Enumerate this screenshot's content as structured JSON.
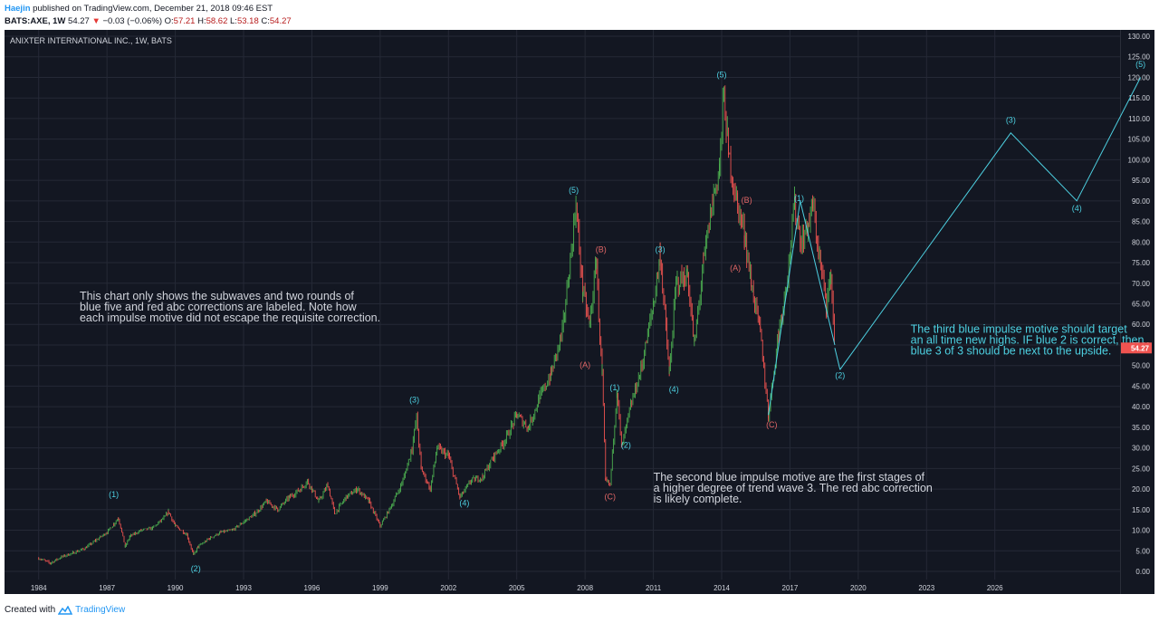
{
  "header": {
    "author": "Haejin",
    "published": "published on TradingView.com, December 21, 2018 09:46 EST",
    "symbol": "BATS:AXE, 1W",
    "last": "54.27",
    "arrow": "▼",
    "change": "−0.03 (−0.06%)",
    "o_label": "O:",
    "o": "57.21",
    "h_label": "H:",
    "h": "58.62",
    "l_label": "L:",
    "l": "53.18",
    "c_label": "C:",
    "c": "54.27"
  },
  "footer": {
    "created_with": "Created with",
    "brand": "TradingView"
  },
  "colors": {
    "background": "#131722",
    "grid": "#252936",
    "up": "#4caf50",
    "down": "#ef5350",
    "blue_wave": "#4dd0e1",
    "red_wave": "#e06666",
    "text": "#d1d4dc",
    "price_tag": "#ef5350"
  },
  "chart_data": {
    "type": "line",
    "title": "ANIXTER INTERNATIONAL INC., 1W, BATS",
    "y_range": [
      0,
      130
    ],
    "y_ticks": [
      "0.00",
      "5.00",
      "10.00",
      "15.00",
      "20.00",
      "25.00",
      "30.00",
      "35.00",
      "40.00",
      "45.00",
      "50.00",
      "55.00",
      "60.00",
      "65.00",
      "70.00",
      "75.00",
      "80.00",
      "85.00",
      "90.00",
      "95.00",
      "100.00",
      "105.00",
      "110.00",
      "115.00",
      "120.00",
      "125.00",
      "130.00"
    ],
    "x_range": [
      1982.5,
      2031.5
    ],
    "x_ticks": [
      "1984",
      "1987",
      "1990",
      "1993",
      "1996",
      "1999",
      "2002",
      "2005",
      "2008",
      "2011",
      "2014",
      "2017",
      "2020",
      "2023",
      "2026"
    ],
    "last_price_tag": "54.27",
    "series": [
      {
        "values": [
          [
            1984.0,
            3.2
          ],
          [
            1984.5,
            2.0
          ],
          [
            1985.0,
            3.5
          ],
          [
            1985.5,
            4.5
          ],
          [
            1986.0,
            5.5
          ],
          [
            1986.5,
            7.5
          ],
          [
            1987.0,
            9.5
          ],
          [
            1987.3,
            11.5
          ],
          [
            1987.5,
            13.0
          ],
          [
            1987.8,
            6.0
          ],
          [
            1988.0,
            8.5
          ],
          [
            1988.5,
            10.0
          ],
          [
            1989.0,
            10.5
          ],
          [
            1989.5,
            13.0
          ],
          [
            1989.7,
            14.5
          ],
          [
            1990.0,
            11.0
          ],
          [
            1990.5,
            9.0
          ],
          [
            1990.8,
            4.0
          ],
          [
            1991.0,
            6.0
          ],
          [
            1991.5,
            8.0
          ],
          [
            1992.0,
            9.5
          ],
          [
            1992.5,
            10.0
          ],
          [
            1993.0,
            12.0
          ],
          [
            1993.5,
            14.0
          ],
          [
            1994.0,
            17.0
          ],
          [
            1994.5,
            15.0
          ],
          [
            1995.0,
            18.0
          ],
          [
            1995.5,
            20.0
          ],
          [
            1995.8,
            22.0
          ],
          [
            1996.3,
            17.0
          ],
          [
            1996.7,
            21.0
          ],
          [
            1997.0,
            14.0
          ],
          [
            1997.5,
            18.0
          ],
          [
            1998.0,
            20.0
          ],
          [
            1998.5,
            17.0
          ],
          [
            1999.0,
            11.0
          ],
          [
            1999.5,
            16.0
          ],
          [
            2000.0,
            22.0
          ],
          [
            2000.4,
            30.0
          ],
          [
            2000.6,
            37.5
          ],
          [
            2000.8,
            25.0
          ],
          [
            2001.2,
            20.0
          ],
          [
            2001.5,
            30.0
          ],
          [
            2002.0,
            28.0
          ],
          [
            2002.5,
            18.0
          ],
          [
            2003.0,
            22.0
          ],
          [
            2003.5,
            23.0
          ],
          [
            2004.0,
            28.0
          ],
          [
            2004.5,
            32.0
          ],
          [
            2005.0,
            38.0
          ],
          [
            2005.5,
            35.0
          ],
          [
            2006.0,
            42.0
          ],
          [
            2006.5,
            48.0
          ],
          [
            2007.0,
            58.0
          ],
          [
            2007.6,
            88.5
          ],
          [
            2007.9,
            68.0
          ],
          [
            2008.2,
            60.0
          ],
          [
            2008.5,
            75.5
          ],
          [
            2008.6,
            62.0
          ],
          [
            2008.75,
            48.0
          ],
          [
            2008.9,
            22.0
          ],
          [
            2009.1,
            21.0
          ],
          [
            2009.4,
            44.0
          ],
          [
            2009.6,
            30.0
          ],
          [
            2010.0,
            40.0
          ],
          [
            2010.5,
            50.0
          ],
          [
            2011.0,
            65.0
          ],
          [
            2011.3,
            77.0
          ],
          [
            2011.7,
            48.0
          ],
          [
            2012.0,
            70.0
          ],
          [
            2012.5,
            72.0
          ],
          [
            2012.8,
            55.0
          ],
          [
            2013.2,
            75.0
          ],
          [
            2013.6,
            90.0
          ],
          [
            2013.9,
            98.0
          ],
          [
            2014.1,
            116.0
          ],
          [
            2014.3,
            101.0
          ],
          [
            2014.7,
            89.0
          ],
          [
            2015.0,
            82.0
          ],
          [
            2015.3,
            70.0
          ],
          [
            2015.7,
            58.0
          ],
          [
            2016.05,
            38.0
          ],
          [
            2016.5,
            58.0
          ],
          [
            2016.9,
            72.0
          ],
          [
            2017.2,
            89.0
          ],
          [
            2017.5,
            80.0
          ],
          [
            2017.8,
            84.0
          ],
          [
            2018.0,
            89.0
          ],
          [
            2018.3,
            76.0
          ],
          [
            2018.6,
            65.0
          ],
          [
            2018.8,
            72.0
          ],
          [
            2018.97,
            54.27
          ]
        ]
      },
      {
        "values": [
          [
            2019.2,
            49.0
          ],
          [
            2026.7,
            106.5
          ],
          [
            2029.6,
            90.0
          ],
          [
            2032.4,
            120.0
          ]
        ]
      }
    ],
    "wave_labels_blue": [
      {
        "text": "(1)",
        "x": 1987.3,
        "y": 18.0
      },
      {
        "text": "(2)",
        "x": 1990.9,
        "y": 0.0
      },
      {
        "text": "(3)",
        "x": 2000.5,
        "y": 41.0
      },
      {
        "text": "(4)",
        "x": 2002.7,
        "y": 16.0
      },
      {
        "text": "(5)",
        "x": 2007.5,
        "y": 92.0
      },
      {
        "text": "(1)",
        "x": 2009.3,
        "y": 44.0
      },
      {
        "text": "(2)",
        "x": 2009.8,
        "y": 30.0
      },
      {
        "text": "(3)",
        "x": 2011.3,
        "y": 77.5
      },
      {
        "text": "(4)",
        "x": 2011.9,
        "y": 43.5
      },
      {
        "text": "(5)",
        "x": 2014.0,
        "y": 120.0
      },
      {
        "text": "(1)",
        "x": 2017.4,
        "y": 90.0
      },
      {
        "text": "(2)",
        "x": 2019.2,
        "y": 47.0
      },
      {
        "text": "(3)",
        "x": 2026.7,
        "y": 109.0
      },
      {
        "text": "(4)",
        "x": 2029.6,
        "y": 87.5
      },
      {
        "text": "(5)",
        "x": 2032.4,
        "y": 122.5
      }
    ],
    "wave_labels_red": [
      {
        "text": "(B)",
        "x": 2008.7,
        "y": 77.5
      },
      {
        "text": "(A)",
        "x": 2008.0,
        "y": 49.5
      },
      {
        "text": "(C)",
        "x": 2009.1,
        "y": 17.5
      },
      {
        "text": "(B)",
        "x": 2015.1,
        "y": 89.5
      },
      {
        "text": "(A)",
        "x": 2014.6,
        "y": 73.0
      },
      {
        "text": "(C)",
        "x": 2016.2,
        "y": 35.0
      }
    ],
    "annotations": [
      {
        "lines": [
          "This chart only shows the subwaves and two rounds of",
          "blue five and red abc corrections are labeled. Note how",
          "each impulse motive did not escape the requisite correction."
        ],
        "x": 1985.8,
        "y": 66.0,
        "color": "#d1d4dc"
      },
      {
        "lines": [
          "The second blue impulse motive are the first stages of",
          "a higher degree of trend wave 3. The red abc correction",
          "is likely complete."
        ],
        "x": 2011.0,
        "y": 22.0,
        "color": "#d1d4dc"
      },
      {
        "lines": [
          "The third blue impulse motive should target",
          "an all time new highs. IF blue 2 is correct, then",
          "blue 3 of 3 should be next to the upside."
        ],
        "x": 2022.3,
        "y": 58.0,
        "color": "#4dd0e1"
      }
    ]
  }
}
